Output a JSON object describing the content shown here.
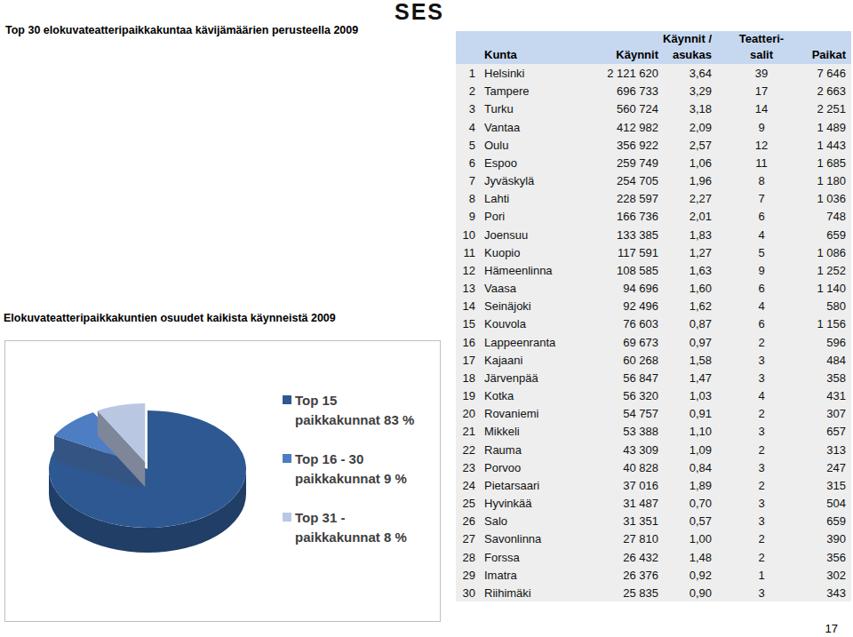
{
  "header": {
    "title": "Top 30 elokuvateatteripaikkakuntaa kävijämäärien perusteella 2009",
    "logo": "SES"
  },
  "table": {
    "columns": [
      "Kunta",
      "Käynnit",
      "Käynnit /\nasukas",
      "Teatteri-\nsalit",
      "Paikat"
    ],
    "rows": [
      [
        1,
        "Helsinki",
        "2 121 620",
        "3,64",
        39,
        "7 646"
      ],
      [
        2,
        "Tampere",
        "696 733",
        "3,29",
        17,
        "2 663"
      ],
      [
        3,
        "Turku",
        "560 724",
        "3,18",
        14,
        "2 251"
      ],
      [
        4,
        "Vantaa",
        "412 982",
        "2,09",
        9,
        "1 489"
      ],
      [
        5,
        "Oulu",
        "356 922",
        "2,57",
        12,
        "1 443"
      ],
      [
        6,
        "Espoo",
        "259 749",
        "1,06",
        11,
        "1 685"
      ],
      [
        7,
        "Jyväskylä",
        "254 705",
        "1,96",
        8,
        "1 180"
      ],
      [
        8,
        "Lahti",
        "228 597",
        "2,27",
        7,
        "1 036"
      ],
      [
        9,
        "Pori",
        "166 736",
        "2,01",
        6,
        748
      ],
      [
        10,
        "Joensuu",
        "133 385",
        "1,83",
        4,
        659
      ],
      [
        11,
        "Kuopio",
        "117 591",
        "1,27",
        5,
        "1 086"
      ],
      [
        12,
        "Hämeenlinna",
        "108 585",
        "1,63",
        9,
        "1 252"
      ],
      [
        13,
        "Vaasa",
        "94 696",
        "1,60",
        6,
        "1 140"
      ],
      [
        14,
        "Seinäjoki",
        "92 496",
        "1,62",
        4,
        580
      ],
      [
        15,
        "Kouvola",
        "76 603",
        "0,87",
        6,
        "1 156"
      ],
      [
        16,
        "Lappeenranta",
        "69 673",
        "0,97",
        2,
        596
      ],
      [
        17,
        "Kajaani",
        "60 268",
        "1,58",
        3,
        484
      ],
      [
        18,
        "Järvenpää",
        "56 847",
        "1,47",
        3,
        358
      ],
      [
        19,
        "Kotka",
        "56 320",
        "1,03",
        4,
        431
      ],
      [
        20,
        "Rovaniemi",
        "54 757",
        "0,91",
        2,
        307
      ],
      [
        21,
        "Mikkeli",
        "53 388",
        "1,10",
        3,
        657
      ],
      [
        22,
        "Rauma",
        "43 309",
        "1,09",
        2,
        313
      ],
      [
        23,
        "Porvoo",
        "40 828",
        "0,84",
        3,
        247
      ],
      [
        24,
        "Pietarsaari",
        "37 016",
        "1,89",
        2,
        315
      ],
      [
        25,
        "Hyvinkää",
        "31 487",
        "0,70",
        3,
        504
      ],
      [
        26,
        "Salo",
        "31 351",
        "0,57",
        3,
        659
      ],
      [
        27,
        "Savonlinna",
        "27 810",
        "1,00",
        2,
        390
      ],
      [
        28,
        "Forssa",
        "26 432",
        "1,48",
        2,
        356
      ],
      [
        29,
        "Imatra",
        "26 376",
        "0,92",
        1,
        302
      ],
      [
        30,
        "Riihimäki",
        "25 835",
        "0,90",
        3,
        343
      ]
    ]
  },
  "chart_data": {
    "type": "pie",
    "title": "Elokuvateatteripaikkakuntien osuudet kaikista käynneistä 2009",
    "categories": [
      "Top 15\npaikkakunnat 83 %",
      "Top 16 - 30\npaikkakunnat 9 %",
      "Top 31 -\npaikkakunnat 8 %"
    ],
    "values": [
      83,
      9,
      8
    ],
    "colors": [
      "#2e5892",
      "#4d7dc2",
      "#b9c7e2"
    ],
    "legend": "right"
  },
  "page_number": 17
}
